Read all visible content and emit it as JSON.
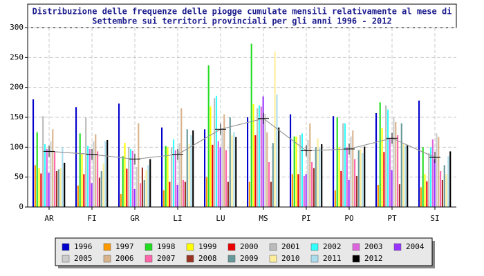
{
  "chart_data": {
    "type": "bar",
    "title_lines": [
      "Distribuzione delle frequenze delle piogge cumulate mensili relativamente al mese di",
      "Settembre sui territori provinciali per gli anni 1996 - 2012"
    ],
    "categories": [
      "AR",
      "FI",
      "GR",
      "LI",
      "LU",
      "MS",
      "PI",
      "PO",
      "PT",
      "SI"
    ],
    "ylim": [
      0,
      300
    ],
    "yticks": [
      0,
      50,
      100,
      150,
      200,
      250,
      300
    ],
    "grid": true,
    "series": [
      {
        "name": "1996",
        "color": "#0000cc",
        "values": [
          180,
          167,
          173,
          133,
          130,
          150,
          155,
          152,
          157,
          178
        ]
      },
      {
        "name": "1997",
        "color": "#ff9900",
        "values": [
          70,
          36,
          22,
          28,
          50,
          42,
          55,
          28,
          37,
          33
        ]
      },
      {
        "name": "1998",
        "color": "#22dd22",
        "values": [
          125,
          123,
          85,
          102,
          237,
          273,
          118,
          150,
          175,
          100
        ]
      },
      {
        "name": "1999",
        "color": "#ffff00",
        "values": [
          65,
          90,
          107,
          100,
          168,
          172,
          118,
          100,
          132,
          55
        ]
      },
      {
        "name": "2000",
        "color": "#ee0000",
        "values": [
          56,
          55,
          64,
          42,
          104,
          120,
          55,
          60,
          92,
          43
        ]
      },
      {
        "name": "2001",
        "color": "#bbbbbb",
        "values": [
          152,
          150,
          100,
          100,
          182,
          165,
          120,
          140,
          170,
          90
        ]
      },
      {
        "name": "2002",
        "color": "#33ffff",
        "values": [
          105,
          102,
          97,
          113,
          186,
          170,
          123,
          140,
          163,
          100
        ]
      },
      {
        "name": "2003",
        "color": "#dd66dd",
        "values": [
          97,
          97,
          94,
          95,
          110,
          168,
          52,
          100,
          115,
          113
        ]
      },
      {
        "name": "2004",
        "color": "#9933ff",
        "values": [
          57,
          40,
          30,
          37,
          100,
          185,
          55,
          45,
          62,
          80
        ]
      },
      {
        "name": "2005",
        "color": "#cccccc",
        "values": [
          110,
          110,
          67,
          107,
          130,
          156,
          112,
          118,
          150,
          123
        ]
      },
      {
        "name": "2006",
        "color": "#d9b38c",
        "values": [
          130,
          122,
          140,
          165,
          155,
          125,
          140,
          128,
          142,
          117
        ]
      },
      {
        "name": "2007",
        "color": "#ff66aa",
        "values": [
          93,
          93,
          40,
          45,
          95,
          75,
          75,
          80,
          120,
          60
        ]
      },
      {
        "name": "2008",
        "color": "#993322",
        "values": [
          60,
          49,
          66,
          42,
          42,
          42,
          65,
          52,
          38,
          45
        ]
      },
      {
        "name": "2009",
        "color": "#669999",
        "values": [
          63,
          60,
          45,
          130,
          150,
          107,
          100,
          95,
          140,
          70
        ]
      },
      {
        "name": "2010",
        "color": "#ffee99",
        "values": [
          65,
          73,
          62,
          105,
          120,
          260,
          115,
          97,
          106,
          55
        ]
      },
      {
        "name": "2011",
        "color": "#aaddee",
        "values": [
          100,
          110,
          70,
          120,
          125,
          188,
          100,
          90,
          103,
          85
        ]
      },
      {
        "name": "2012",
        "color": "#000000",
        "values": [
          74,
          112,
          80,
          128,
          117,
          133,
          105,
          101,
          104,
          93
        ]
      }
    ],
    "means": [
      93,
      88,
      80,
      88,
      130,
      148,
      94,
      97,
      115,
      83
    ],
    "mean_color": "#999999"
  }
}
